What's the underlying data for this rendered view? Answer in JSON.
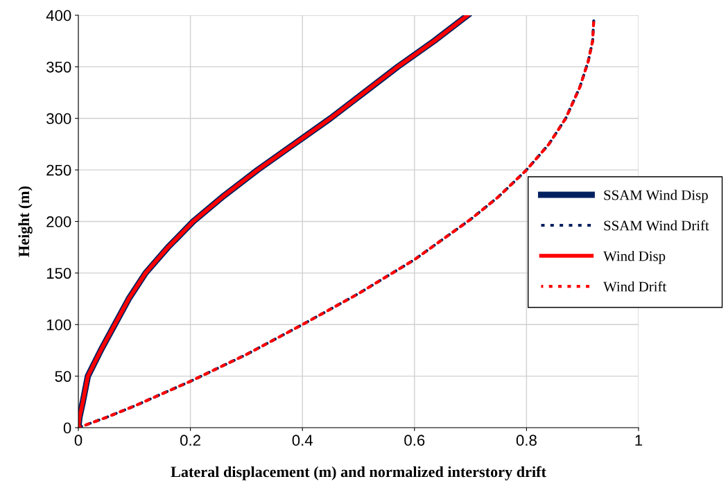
{
  "chart_data": {
    "type": "line",
    "xlabel": "Lateral displacement (m) and normalized interstory drift",
    "ylabel": "Height (m)",
    "xlim": [
      0,
      1
    ],
    "ylim": [
      0,
      400
    ],
    "xticks": [
      0,
      0.2,
      0.4,
      0.6,
      0.8,
      1
    ],
    "yticks": [
      0,
      50,
      100,
      150,
      200,
      250,
      300,
      350,
      400
    ],
    "grid": true,
    "legend": "right",
    "marker": "none",
    "series": [
      {
        "name": "SSAM Wind Disp",
        "color": "#002060",
        "line_style": "solid",
        "x": [
          0,
          0.002,
          0.008,
          0.017,
          0.04,
          0.065,
          0.09,
          0.12,
          0.16,
          0.205,
          0.26,
          0.32,
          0.385,
          0.45,
          0.51,
          0.57,
          0.635,
          0.695
        ],
        "values": [
          0,
          10,
          25,
          50,
          75,
          100,
          125,
          150,
          175,
          200,
          225,
          250,
          275,
          300,
          325,
          350,
          375,
          400
        ]
      },
      {
        "name": "SSAM Wind Drift",
        "color": "#002060",
        "line_style": "dotted",
        "x": [
          0,
          0.05,
          0.1,
          0.2,
          0.3,
          0.4,
          0.5,
          0.6,
          0.7,
          0.75,
          0.8,
          0.84,
          0.87,
          0.895,
          0.91,
          0.918,
          0.92
        ],
        "values": [
          0,
          10,
          21,
          45,
          71,
          100,
          130,
          163,
          202,
          224,
          250,
          275,
          300,
          330,
          355,
          375,
          395
        ]
      },
      {
        "name": "Wind Disp",
        "color": "#ff0000",
        "line_style": "solid",
        "x": [
          0,
          0.002,
          0.008,
          0.017,
          0.04,
          0.065,
          0.09,
          0.12,
          0.16,
          0.205,
          0.26,
          0.32,
          0.385,
          0.45,
          0.51,
          0.57,
          0.635,
          0.695
        ],
        "values": [
          0,
          10,
          25,
          50,
          75,
          100,
          125,
          150,
          175,
          200,
          225,
          250,
          275,
          300,
          325,
          350,
          375,
          400
        ]
      },
      {
        "name": "Wind Drift",
        "color": "#ff0000",
        "line_style": "dotted",
        "x": [
          0,
          0.05,
          0.1,
          0.2,
          0.3,
          0.4,
          0.5,
          0.6,
          0.7,
          0.75,
          0.8,
          0.84,
          0.87,
          0.895,
          0.91,
          0.918,
          0.92
        ],
        "values": [
          0,
          10,
          21,
          45,
          71,
          100,
          130,
          163,
          202,
          224,
          250,
          275,
          300,
          330,
          355,
          375,
          395
        ]
      }
    ]
  }
}
